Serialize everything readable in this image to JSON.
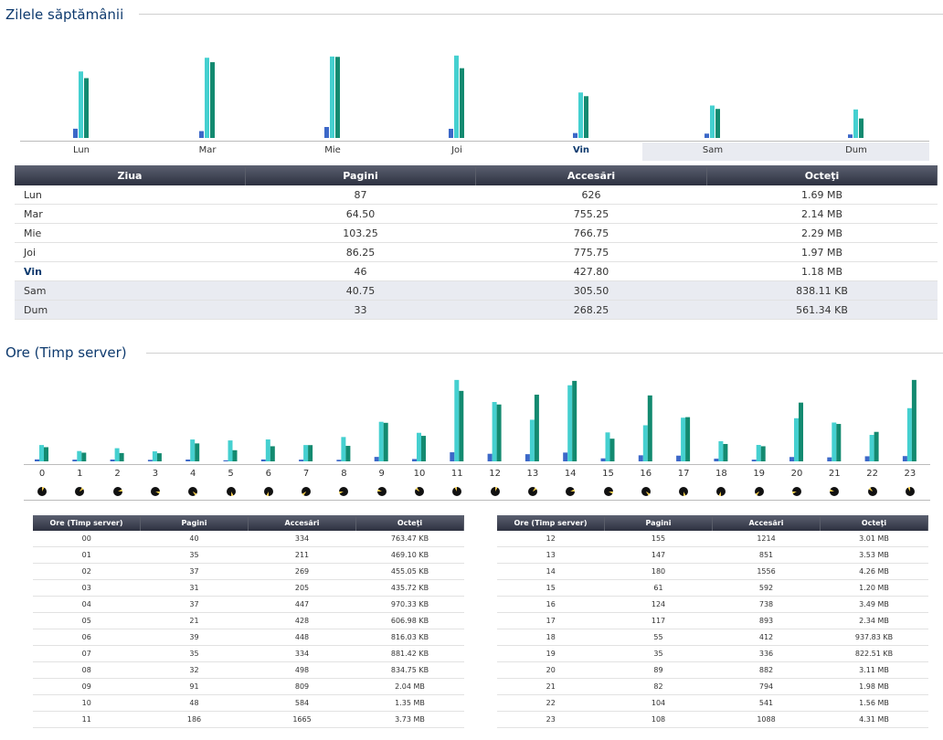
{
  "days_section": {
    "title": "Zilele săptămânii",
    "days": [
      {
        "label": "Lun",
        "pages": 87,
        "hits": 626,
        "bytes_mb": 1.69,
        "weekend": false,
        "today": false
      },
      {
        "label": "Mar",
        "pages": 64.5,
        "hits": 755.25,
        "bytes_mb": 2.14,
        "weekend": false,
        "today": false
      },
      {
        "label": "Mie",
        "pages": 103.25,
        "hits": 766.75,
        "bytes_mb": 2.29,
        "weekend": false,
        "today": false
      },
      {
        "label": "Joi",
        "pages": 86.25,
        "hits": 775.75,
        "bytes_mb": 1.97,
        "weekend": false,
        "today": false
      },
      {
        "label": "Vin",
        "pages": 46,
        "hits": 427.8,
        "bytes_mb": 1.18,
        "weekend": false,
        "today": true
      },
      {
        "label": "Sam",
        "pages": 40.75,
        "hits": 305.5,
        "bytes_mb": 0.82,
        "weekend": true,
        "today": false
      },
      {
        "label": "Dum",
        "pages": 33,
        "hits": 268.25,
        "bytes_mb": 0.55,
        "weekend": true,
        "today": false
      }
    ],
    "table": {
      "headers": [
        "Ziua",
        "Pagini",
        "Accesări",
        "Octeţi"
      ],
      "rows": [
        [
          "Lun",
          "87",
          "626",
          "1.69 MB"
        ],
        [
          "Mar",
          "64.50",
          "755.25",
          "2.14 MB"
        ],
        [
          "Mie",
          "103.25",
          "766.75",
          "2.29 MB"
        ],
        [
          "Joi",
          "86.25",
          "775.75",
          "1.97 MB"
        ],
        [
          "Vin",
          "46",
          "427.80",
          "1.18 MB"
        ],
        [
          "Sam",
          "40.75",
          "305.50",
          "838.11 KB"
        ],
        [
          "Dum",
          "33",
          "268.25",
          "561.34 KB"
        ]
      ]
    }
  },
  "hours_section": {
    "title": "Ore (Timp server)",
    "hour_labels": [
      "0",
      "1",
      "2",
      "3",
      "4",
      "5",
      "6",
      "7",
      "8",
      "9",
      "10",
      "11",
      "12",
      "13",
      "14",
      "15",
      "16",
      "17",
      "18",
      "19",
      "20",
      "21",
      "22",
      "23"
    ],
    "table_headers": [
      "Ore (Timp server)",
      "Pagini",
      "Accesări",
      "Octeţi"
    ],
    "rows_left": [
      [
        "00",
        "40",
        "334",
        "763.47 KB"
      ],
      [
        "01",
        "35",
        "211",
        "469.10 KB"
      ],
      [
        "02",
        "37",
        "269",
        "455.05 KB"
      ],
      [
        "03",
        "31",
        "205",
        "435.72 KB"
      ],
      [
        "04",
        "37",
        "447",
        "970.33 KB"
      ],
      [
        "05",
        "21",
        "428",
        "606.98 KB"
      ],
      [
        "06",
        "39",
        "448",
        "816.03 KB"
      ],
      [
        "07",
        "35",
        "334",
        "881.42 KB"
      ],
      [
        "08",
        "32",
        "498",
        "834.75 KB"
      ],
      [
        "09",
        "91",
        "809",
        "2.04 MB"
      ],
      [
        "10",
        "48",
        "584",
        "1.35 MB"
      ],
      [
        "11",
        "186",
        "1665",
        "3.73 MB"
      ]
    ],
    "rows_right": [
      [
        "12",
        "155",
        "1214",
        "3.01 MB"
      ],
      [
        "13",
        "147",
        "851",
        "3.53 MB"
      ],
      [
        "14",
        "180",
        "1556",
        "4.26 MB"
      ],
      [
        "15",
        "61",
        "592",
        "1.20 MB"
      ],
      [
        "16",
        "124",
        "738",
        "3.49 MB"
      ],
      [
        "17",
        "117",
        "893",
        "2.34 MB"
      ],
      [
        "18",
        "55",
        "412",
        "937.83 KB"
      ],
      [
        "19",
        "35",
        "336",
        "822.51 KB"
      ],
      [
        "20",
        "89",
        "882",
        "3.11 MB"
      ],
      [
        "21",
        "82",
        "794",
        "1.98 MB"
      ],
      [
        "22",
        "104",
        "541",
        "1.56 MB"
      ],
      [
        "23",
        "108",
        "1088",
        "4.31 MB"
      ]
    ],
    "bytes_mb": [
      0.75,
      0.46,
      0.44,
      0.43,
      0.95,
      0.59,
      0.8,
      0.86,
      0.82,
      2.04,
      1.35,
      3.73,
      3.01,
      3.53,
      4.26,
      1.2,
      3.49,
      2.34,
      0.92,
      0.8,
      3.11,
      1.98,
      1.56,
      4.31
    ]
  },
  "colors": {
    "title": "#0e3a6e",
    "bar_pages": "#3c68c8",
    "bar_hits": "#45d0d0",
    "bar_bytes": "#138a70",
    "header_dark": "#2d3140",
    "weekend_row": "#e9ebf1"
  }
}
